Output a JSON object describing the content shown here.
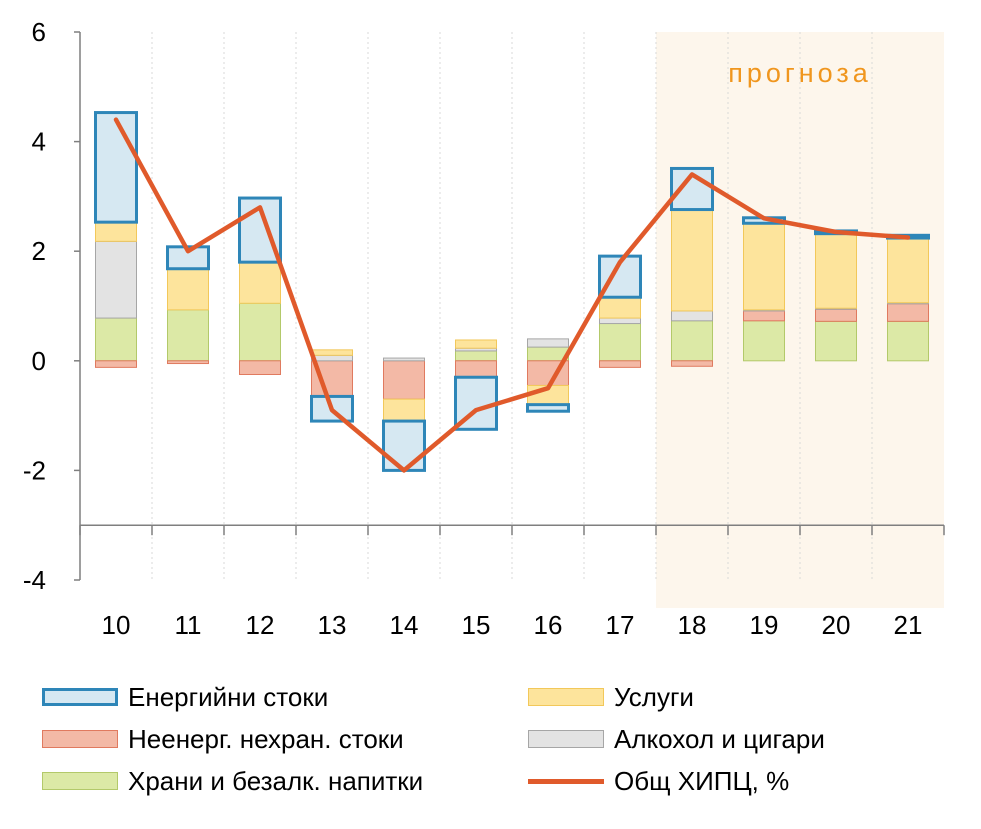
{
  "chart_data": {
    "type": "bar",
    "stacked": true,
    "categories": [
      "10",
      "11",
      "12",
      "13",
      "14",
      "15",
      "16",
      "17",
      "18",
      "19",
      "20",
      "21"
    ],
    "ylim": [
      -4,
      6
    ],
    "yticks": [
      "6",
      "4",
      "2",
      "0",
      "-2",
      "-4"
    ],
    "xaxis_at": -3,
    "grid": "vertical dotted",
    "forecast": {
      "label": "прогноза",
      "from_category": "18",
      "to_category": "21",
      "color": "#F0961E",
      "shade": "#FDF6EC"
    },
    "series": [
      {
        "name": "Храни и безалк. напитки",
        "color": "#DCE9A6",
        "border": "#B3C96A",
        "values": [
          0.78,
          0.93,
          1.05,
          0.0,
          0.0,
          0.18,
          0.25,
          0.68,
          0.73,
          0.73,
          0.72,
          0.72
        ]
      },
      {
        "name": "Неенерг. нехран. стоки",
        "color": "#F3B9A6",
        "border": "#E07A5F",
        "values": [
          -0.12,
          -0.05,
          -0.25,
          -0.65,
          -0.7,
          -0.3,
          -0.45,
          -0.12,
          -0.1,
          0.18,
          0.22,
          0.32
        ]
      },
      {
        "name": "Алкохол и цигари",
        "color": "#E3E3E3",
        "border": "#A6A6A6",
        "values": [
          1.4,
          0.0,
          0.0,
          0.1,
          0.05,
          0.05,
          0.15,
          0.1,
          0.18,
          0.02,
          0.02,
          0.02
        ]
      },
      {
        "name": "Услуги",
        "color": "#FDE49C",
        "border": "#F2C85A",
        "values": [
          0.35,
          0.75,
          0.75,
          0.1,
          -0.4,
          0.15,
          -0.35,
          0.38,
          1.85,
          1.58,
          1.36,
          1.18
        ]
      },
      {
        "name": "Енергийни стоки",
        "color": "#D6E8F2",
        "border": "#2E86B8",
        "values": [
          2.0,
          0.4,
          1.17,
          -0.45,
          -0.9,
          -0.95,
          -0.12,
          0.75,
          0.75,
          0.1,
          0.05,
          0.05
        ]
      }
    ],
    "line": {
      "name": "Общ ХИПЦ, %",
      "color": "#E05A2B",
      "values": [
        4.4,
        2.0,
        2.8,
        -0.9,
        -2.0,
        -0.9,
        -0.5,
        1.8,
        3.4,
        2.6,
        2.35,
        2.25
      ]
    },
    "legend": "bottom"
  },
  "legend": [
    {
      "label": "Енергийни стоки",
      "kind": "box",
      "fill": "#D6E8F2",
      "border": "#2E86B8"
    },
    {
      "label": "Услуги",
      "kind": "box",
      "fill": "#FDE49C",
      "border": "#F2C85A"
    },
    {
      "label": "Неенерг. нехран. стоки",
      "kind": "box",
      "fill": "#F3B9A6",
      "border": "#E07A5F"
    },
    {
      "label": "Алкохол и цигари",
      "kind": "box",
      "fill": "#E3E3E3",
      "border": "#A6A6A6"
    },
    {
      "label": "Храни и безалк. напитки",
      "kind": "box",
      "fill": "#DCE9A6",
      "border": "#B3C96A"
    },
    {
      "label": "Общ ХИПЦ, %",
      "kind": "line",
      "fill": "#E05A2B",
      "border": "#E05A2B"
    }
  ]
}
